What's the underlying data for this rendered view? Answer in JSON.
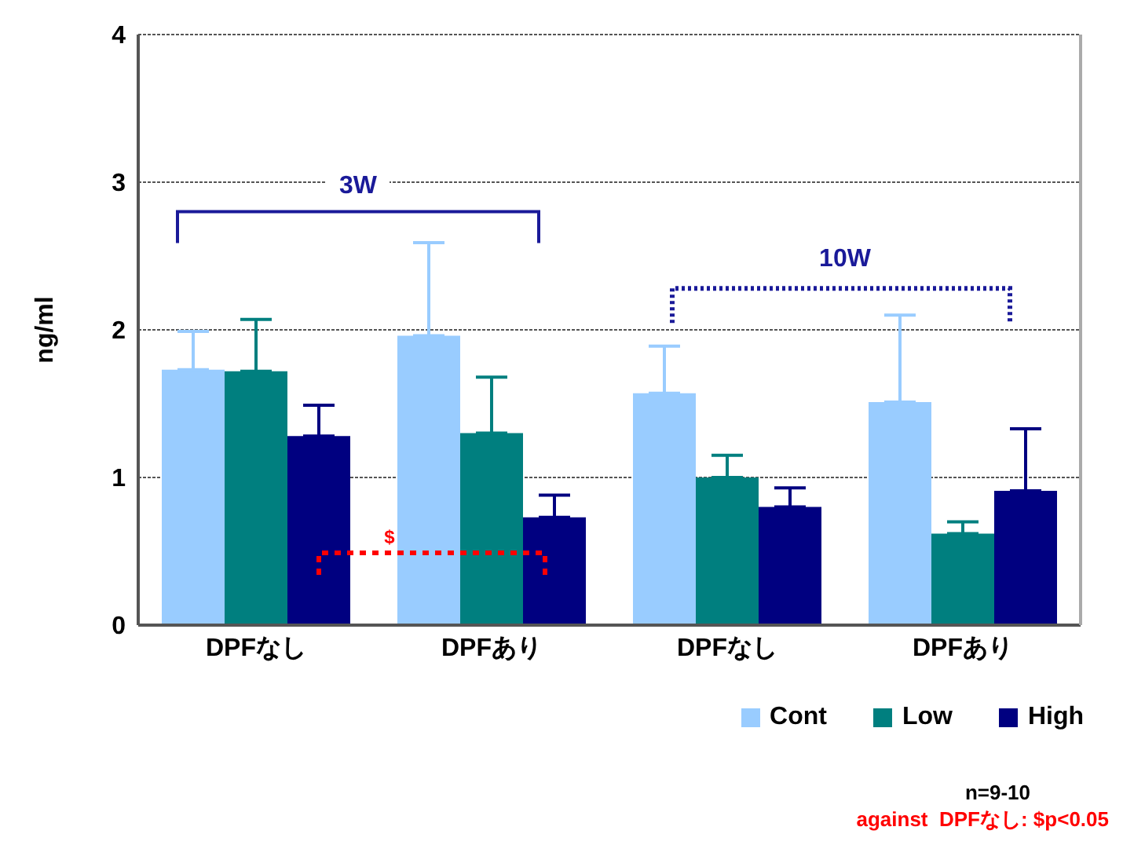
{
  "chart_data": {
    "type": "bar",
    "ylabel": "ng/ml",
    "categories": [
      "DPFなし",
      "DPFあり",
      "DPFなし",
      "DPFあり"
    ],
    "series": [
      {
        "name": "Cont",
        "color": "#99ccff",
        "values": [
          1.73,
          1.96,
          1.57,
          1.51
        ],
        "errors": [
          [
            1.73,
            1.99
          ],
          [
            1.96,
            2.59
          ],
          [
            1.57,
            1.89
          ],
          [
            1.51,
            2.1
          ]
        ]
      },
      {
        "name": "Low",
        "color": "#007f7f",
        "values": [
          1.72,
          1.3,
          1.0,
          0.62
        ],
        "errors": [
          [
            1.72,
            2.07
          ],
          [
            1.3,
            1.68
          ],
          [
            1.0,
            1.15
          ],
          [
            0.62,
            0.7
          ]
        ]
      },
      {
        "name": "High",
        "color": "#000080",
        "values": [
          1.28,
          0.73,
          0.8,
          0.91
        ],
        "errors": [
          [
            1.28,
            1.49
          ],
          [
            0.73,
            0.88
          ],
          [
            0.8,
            0.93
          ],
          [
            0.91,
            1.33
          ]
        ]
      }
    ],
    "ylim": [
      0,
      4
    ],
    "yticks": [
      0,
      1,
      2,
      3,
      4
    ],
    "grid": "y",
    "legend": "bottom right",
    "annotations": [
      "3W",
      "10W",
      "$",
      "n=9-10",
      "against  DPFなし: $p<0.05"
    ]
  }
}
